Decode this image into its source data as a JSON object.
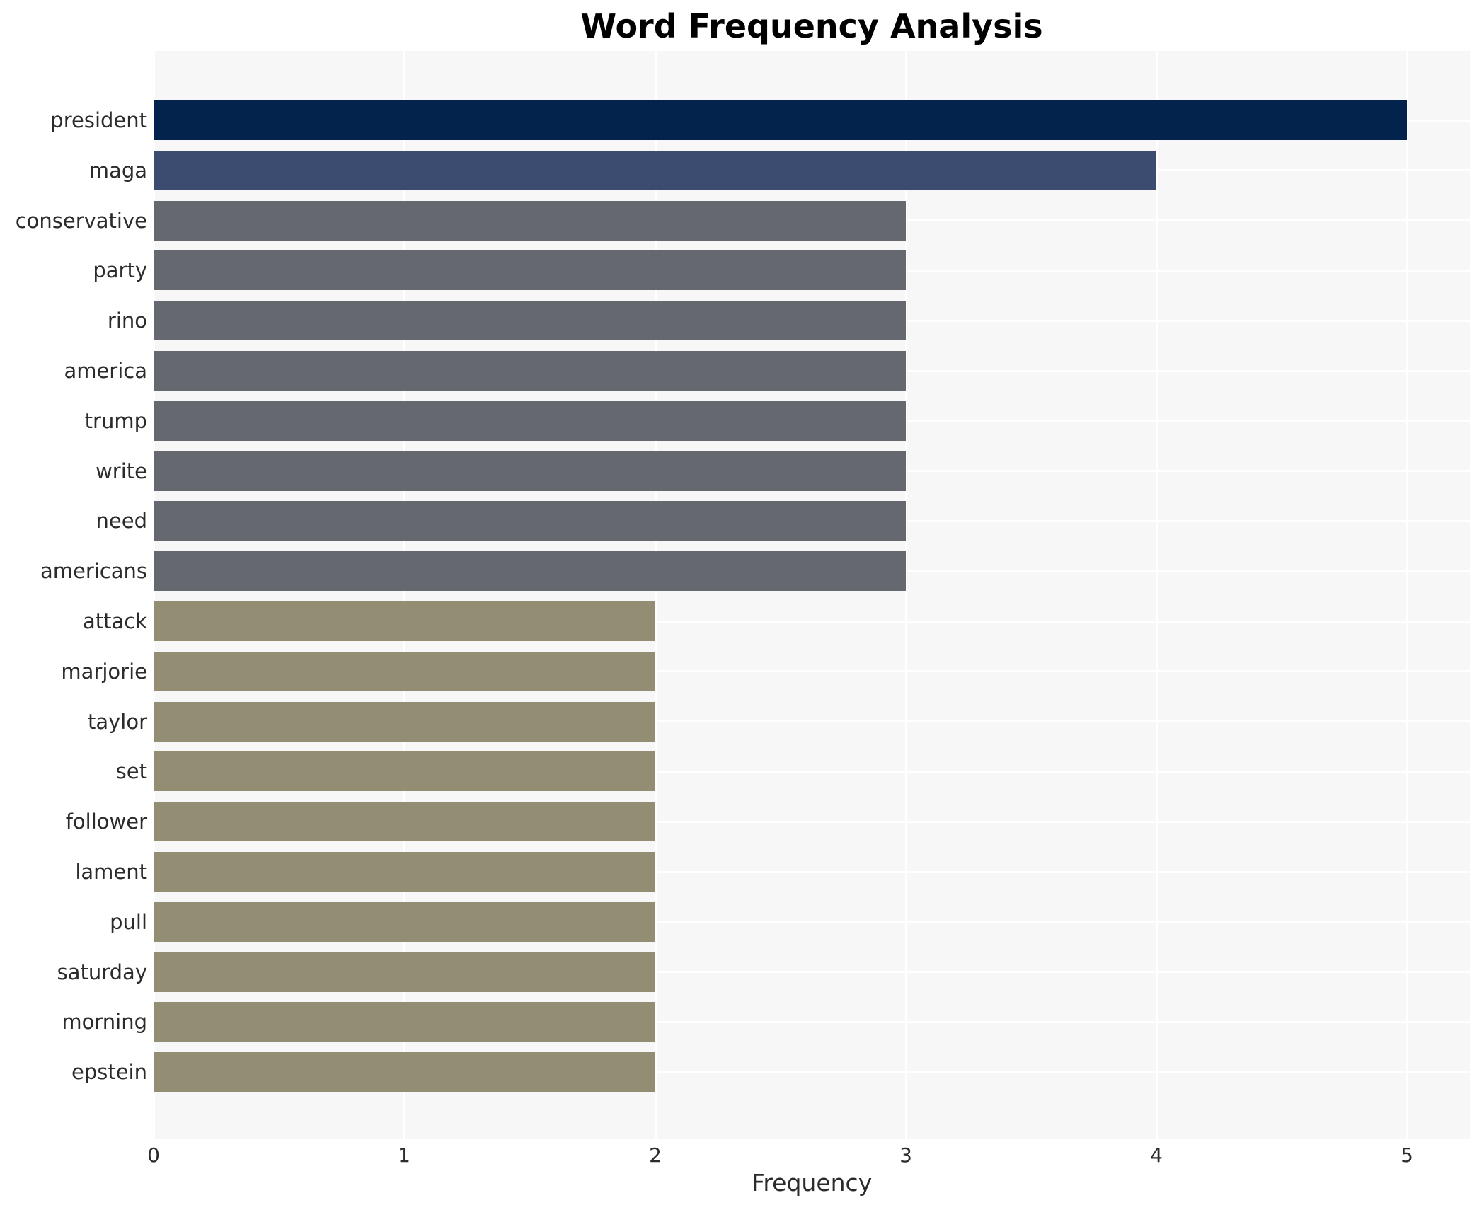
{
  "chart_data": {
    "type": "bar",
    "orientation": "horizontal",
    "title": "Word Frequency Analysis",
    "xlabel": "Frequency",
    "ylabel": "",
    "categories": [
      "president",
      "maga",
      "conservative",
      "party",
      "rino",
      "america",
      "trump",
      "write",
      "need",
      "americans",
      "attack",
      "marjorie",
      "taylor",
      "set",
      "follower",
      "lament",
      "pull",
      "saturday",
      "morning",
      "epstein"
    ],
    "values": [
      5,
      4,
      3,
      3,
      3,
      3,
      3,
      3,
      3,
      3,
      2,
      2,
      2,
      2,
      2,
      2,
      2,
      2,
      2,
      2
    ],
    "bar_colors": [
      "#03224c",
      "#3c4b70",
      "#65696f",
      "#65696f",
      "#65696f",
      "#65696f",
      "#65696f",
      "#65696f",
      "#65696f",
      "#65696f",
      "#938d74",
      "#938d74",
      "#938d74",
      "#938d74",
      "#938d74",
      "#938d74",
      "#938d74",
      "#938d74",
      "#938d74",
      "#938d74"
    ],
    "xlim": [
      0,
      5.25
    ],
    "xticks": [
      0,
      1,
      2,
      3,
      4,
      5
    ],
    "grid": true,
    "legend": false,
    "plot_background": "#f7f7f7",
    "grid_color": "#ffffff",
    "figure_background": "#ffffff"
  }
}
